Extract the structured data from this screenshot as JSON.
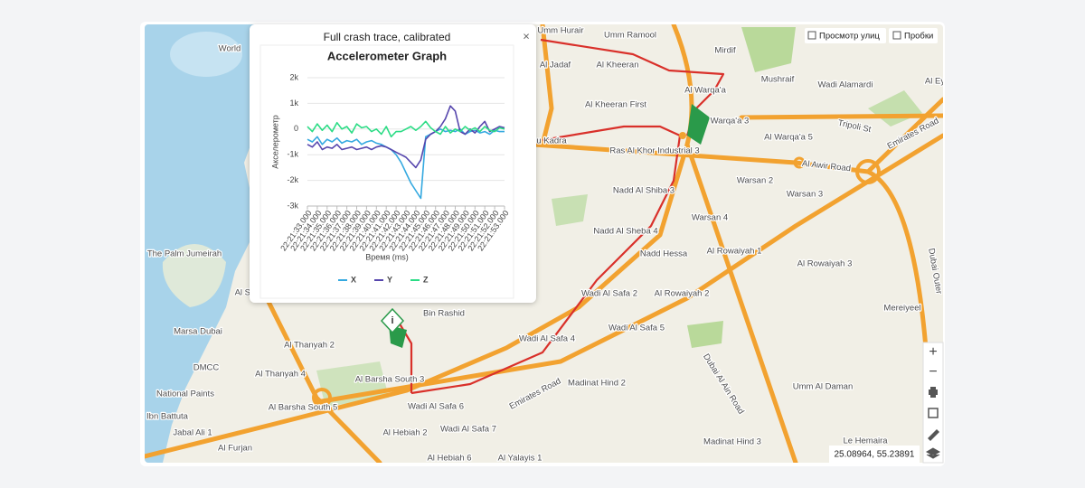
{
  "popup": {
    "title": "Full crash trace, calibrated",
    "close": "×"
  },
  "chart_data": {
    "type": "line",
    "title": "Accelerometer Graph",
    "x_label": "Время (ms)",
    "y_label": "Акселерометр",
    "categories": [
      "22:21:33.000",
      null,
      "22:21:34.000",
      null,
      "22:21:35.000",
      null,
      "22:21:36.000",
      null,
      "22:21:37.000",
      null,
      "22:21:38.000",
      null,
      "22:21:39.000",
      null,
      "22:21:40.000",
      null,
      "22:21:41.000",
      null,
      "22:21:42.000",
      null,
      "22:21:43.000",
      null,
      "22:21:44.000",
      null,
      "22:21:45.000",
      null,
      "22:21:46.000",
      null,
      "22:21:47.000",
      null,
      "22:21:48.000",
      null,
      "22:21:49.000",
      null,
      "22:21:50.000",
      null,
      "22:21:51.000",
      null,
      "22:21:52.000",
      null,
      "22:21:53.000"
    ],
    "series": [
      {
        "name": "X",
        "color": "#35a9e0",
        "values": [
          -400,
          -500,
          -300,
          -600,
          -400,
          -500,
          -350,
          -550,
          -450,
          -500,
          -400,
          -600,
          -500,
          -450,
          -550,
          -600,
          -700,
          -800,
          -1000,
          -1300,
          -1700,
          -2100,
          -2400,
          -2700,
          -300,
          -200,
          -100,
          0,
          -100,
          -50,
          -100,
          0,
          -200,
          -100,
          -50,
          -150,
          -100,
          -200,
          -50,
          -100,
          -100
        ]
      },
      {
        "name": "Y",
        "color": "#5646ad",
        "values": [
          -600,
          -700,
          -500,
          -800,
          -700,
          -750,
          -600,
          -800,
          -750,
          -700,
          -800,
          -750,
          -700,
          -800,
          -700,
          -650,
          -700,
          -800,
          -900,
          -1000,
          -1100,
          -1300,
          -1500,
          -1200,
          -400,
          -200,
          -100,
          100,
          400,
          900,
          700,
          -100,
          -200,
          0,
          -150,
          100,
          300,
          -100,
          0,
          100,
          50
        ]
      },
      {
        "name": "Z",
        "color": "#2bdc85",
        "values": [
          100,
          -100,
          200,
          -50,
          150,
          -100,
          250,
          0,
          100,
          -150,
          200,
          50,
          100,
          -100,
          0,
          -200,
          100,
          -300,
          -100,
          -100,
          0,
          100,
          -50,
          100,
          300,
          50,
          -100,
          -200,
          100,
          -150,
          0,
          -100,
          100,
          -50,
          50,
          -100,
          100,
          -50,
          -100,
          50,
          0
        ]
      }
    ],
    "ylim": [
      -3000,
      2000
    ],
    "yticks": [
      {
        "value": -3000,
        "label": "-3k"
      },
      {
        "value": -2000,
        "label": "-2k"
      },
      {
        "value": -1000,
        "label": "-1k"
      },
      0,
      {
        "value": 1000,
        "label": "1k"
      },
      {
        "value": 2000,
        "label": "2k"
      }
    ],
    "grid": true,
    "legend": "bottom"
  },
  "map": {
    "labels": [
      "World",
      "Umm Hurair",
      "Umm Ramool",
      "Mirdif",
      "Mushraif",
      "Wadi Alamardi",
      "Al Jadaf",
      "Al Kheeran",
      "Al Kheeran First",
      "Al Warqa'a",
      "Warqa'a 3",
      "Al Warqa'a 5",
      "Tripoli St",
      "Emirates Road",
      "Ras Al Khor Industrial 3",
      "Al Awir Road",
      "u Kadra",
      "Nadd Al Shiba 3",
      "Warsan 2",
      "Warsan 3",
      "Warsan 4",
      "Nadd Al Sheba 4",
      "Nadd Hessa",
      "Al Rowaiyah 1",
      "Al Rowaiyah 3",
      "The Palm Jumeirah",
      "Wadi Al Safa 2",
      "Al Rowaiyah 2",
      "Bin Rashid",
      "Mereiyeel",
      "Marsa Dubai",
      "Wadi Al Safa 5",
      "Wadi Al Safa 4",
      "Al Thanyah 2",
      "Al Thanyah 4",
      "DMCC",
      "Al Barsha South 3",
      "Madinat Hind 2",
      "Umm Al Daman",
      "National Paints",
      "Al Barsha South 5",
      "Wadi Al Safa 6",
      "Ibn Battuta",
      "Wadi Al Safa 7",
      "Jabal Ali 1",
      "Al Hebiah 2",
      "Le Hemaira",
      "Madinat Hind 3",
      "Al Furjan",
      "Al Hebiah 6",
      "Al Yalayis 1",
      "Al Sul",
      "Al Ey",
      "Dubai Al Ain Road",
      "Emirates Road",
      "Dubai Outer"
    ]
  },
  "controls": {
    "street_view": "Просмотр улиц",
    "traffic": "Пробки",
    "zoom_in": "+",
    "zoom_out": "−"
  },
  "coordinates": "25.08964, 55.23891"
}
